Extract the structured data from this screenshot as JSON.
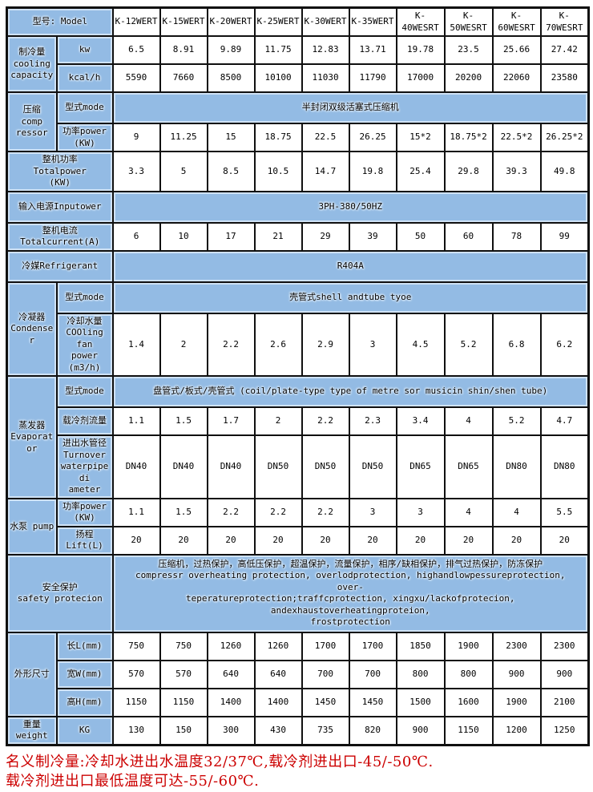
{
  "colors": {
    "cell_blue": "#93bbe4",
    "cell_blue_glow": "#cfe2f5",
    "grid_border": "#101010",
    "note_red": "#cc0000",
    "data_bg": "#ffffff"
  },
  "table": {
    "rows": [
      {
        "cells": [
          {
            "t": "型号: Model",
            "cs": 2,
            "k": "label",
            "n": "model-row-label"
          },
          {
            "t": "K-12WERT",
            "k": "model"
          },
          {
            "t": "K-15WERT",
            "k": "model"
          },
          {
            "t": "K-20WERT",
            "k": "model"
          },
          {
            "t": "K-25WERT",
            "k": "model"
          },
          {
            "t": "K-30WERT",
            "k": "model"
          },
          {
            "t": "K-35WERT",
            "k": "model"
          },
          {
            "t": "K-40WESRT",
            "k": "model"
          },
          {
            "t": "K-50WESRT",
            "k": "model"
          },
          {
            "t": "K-60WESRT",
            "k": "model"
          },
          {
            "t": "K-70WESRT",
            "k": "model"
          }
        ]
      },
      {
        "cells": [
          {
            "t": "制冷量\ncooling\ncapacity",
            "rs": 2,
            "k": "label",
            "n": "cooling-capacity-label"
          },
          {
            "t": "kw",
            "k": "label"
          },
          {
            "t": "6.5"
          },
          {
            "t": "8.91"
          },
          {
            "t": "9.89"
          },
          {
            "t": "11.75"
          },
          {
            "t": "12.83"
          },
          {
            "t": "13.71"
          },
          {
            "t": "19.78"
          },
          {
            "t": "23.5"
          },
          {
            "t": "25.66"
          },
          {
            "t": "27.42"
          }
        ]
      },
      {
        "cells": [
          {
            "t": "kcal/h",
            "k": "label"
          },
          {
            "t": "5590"
          },
          {
            "t": "7660"
          },
          {
            "t": "8500"
          },
          {
            "t": "10100"
          },
          {
            "t": "11030"
          },
          {
            "t": "11790"
          },
          {
            "t": "17000"
          },
          {
            "t": "20200"
          },
          {
            "t": "22060"
          },
          {
            "t": "23580"
          }
        ]
      },
      {
        "cells": [
          {
            "t": "压缩\ncomp\nressor",
            "rs": 2,
            "k": "label",
            "n": "compressor-label"
          },
          {
            "t": "型式mode",
            "k": "label"
          },
          {
            "t": "半封闭双级活塞式压缩机",
            "cs": 10,
            "k": "span",
            "n": "compressor-type-value"
          }
        ]
      },
      {
        "cells": [
          {
            "t": "功率power\n(KW)",
            "k": "label"
          },
          {
            "t": "9"
          },
          {
            "t": "11.25"
          },
          {
            "t": "15"
          },
          {
            "t": "18.75"
          },
          {
            "t": "22.5"
          },
          {
            "t": "26.25"
          },
          {
            "t": "15*2"
          },
          {
            "t": "18.75*2"
          },
          {
            "t": "22.5*2"
          },
          {
            "t": "26.25*2"
          }
        ]
      },
      {
        "cells": [
          {
            "t": "整机功率\nTotalpower\n(KW)",
            "cs": 2,
            "k": "label",
            "n": "total-power-label"
          },
          {
            "t": "3.3"
          },
          {
            "t": "5"
          },
          {
            "t": "8.5"
          },
          {
            "t": "10.5"
          },
          {
            "t": "14.7"
          },
          {
            "t": "19.8"
          },
          {
            "t": "25.4"
          },
          {
            "t": "29.8"
          },
          {
            "t": "39.3"
          },
          {
            "t": "49.8"
          }
        ]
      },
      {
        "cells": [
          {
            "t": "输入电源Inputower",
            "cs": 2,
            "k": "label",
            "n": "input-power-label"
          },
          {
            "t": "3PH-380/50HZ",
            "cs": 10,
            "k": "span",
            "n": "input-power-value"
          }
        ]
      },
      {
        "cells": [
          {
            "t": "整机电流Totalcurrent(A)",
            "cs": 2,
            "k": "label",
            "n": "total-current-label"
          },
          {
            "t": "6"
          },
          {
            "t": "10"
          },
          {
            "t": "17"
          },
          {
            "t": "21"
          },
          {
            "t": "29"
          },
          {
            "t": "39"
          },
          {
            "t": "50"
          },
          {
            "t": "60"
          },
          {
            "t": "78"
          },
          {
            "t": "99"
          }
        ]
      },
      {
        "cells": [
          {
            "t": "冷媒Refrigerant",
            "cs": 2,
            "k": "label",
            "n": "refrigerant-label"
          },
          {
            "t": "R404A",
            "cs": 10,
            "k": "span",
            "n": "refrigerant-value"
          }
        ]
      },
      {
        "cells": [
          {
            "t": "冷凝器\nCondenser",
            "rs": 2,
            "k": "label",
            "n": "condenser-label"
          },
          {
            "t": "型式mode",
            "k": "label"
          },
          {
            "t": "壳管式shell andtube tyoe",
            "cs": 10,
            "k": "span",
            "n": "condenser-type-value"
          }
        ]
      },
      {
        "cells": [
          {
            "t": "冷却水量\nCOOling fan\npower (m3/h)",
            "k": "label"
          },
          {
            "t": "1.4"
          },
          {
            "t": "2"
          },
          {
            "t": "2.2"
          },
          {
            "t": "2.6"
          },
          {
            "t": "2.9"
          },
          {
            "t": "3"
          },
          {
            "t": "4.5"
          },
          {
            "t": "5.2"
          },
          {
            "t": "6.8"
          },
          {
            "t": "6.2"
          }
        ]
      },
      {
        "cells": [
          {
            "t": "蒸发器\nEvaporator",
            "rs": 3,
            "k": "label",
            "n": "evaporator-label"
          },
          {
            "t": "型式mode",
            "k": "label"
          },
          {
            "t": "盘管式/板式/壳管式 (coil/plate-type type of metre sor musicin shin/shen tube)",
            "cs": 10,
            "k": "span",
            "n": "evaporator-type-value"
          }
        ]
      },
      {
        "cells": [
          {
            "t": "载冷剂流量",
            "k": "label"
          },
          {
            "t": "1.1"
          },
          {
            "t": "1.5"
          },
          {
            "t": "1.7"
          },
          {
            "t": "2"
          },
          {
            "t": "2.2"
          },
          {
            "t": "2.3"
          },
          {
            "t": "3.4"
          },
          {
            "t": "4"
          },
          {
            "t": "5.2"
          },
          {
            "t": "4.7"
          }
        ]
      },
      {
        "cells": [
          {
            "t": "进出水管径\nTurnover\nwaterpipedi\nameter",
            "k": "label"
          },
          {
            "t": "DN40"
          },
          {
            "t": "DN40"
          },
          {
            "t": "DN40"
          },
          {
            "t": "DN50"
          },
          {
            "t": "DN50"
          },
          {
            "t": "DN50"
          },
          {
            "t": "DN65"
          },
          {
            "t": "DN65"
          },
          {
            "t": "DN80"
          },
          {
            "t": "DN80"
          }
        ]
      },
      {
        "cells": [
          {
            "t": "水泵  pump",
            "rs": 2,
            "k": "label",
            "n": "pump-label"
          },
          {
            "t": "功率power (KW)",
            "k": "label"
          },
          {
            "t": "1.1"
          },
          {
            "t": "1.5"
          },
          {
            "t": "2.2"
          },
          {
            "t": "2.2"
          },
          {
            "t": "2.2"
          },
          {
            "t": "3"
          },
          {
            "t": "3"
          },
          {
            "t": "4"
          },
          {
            "t": "4"
          },
          {
            "t": "5.5"
          }
        ]
      },
      {
        "cells": [
          {
            "t": "扬程Lift(L)",
            "k": "label"
          },
          {
            "t": "20"
          },
          {
            "t": "20"
          },
          {
            "t": "20"
          },
          {
            "t": "20"
          },
          {
            "t": "20"
          },
          {
            "t": "20"
          },
          {
            "t": "20"
          },
          {
            "t": "20"
          },
          {
            "t": "20"
          },
          {
            "t": "20"
          }
        ]
      },
      {
        "cells": [
          {
            "t": "安全保护\nsafety protecion",
            "cs": 2,
            "k": "label",
            "n": "safety-protection-label"
          },
          {
            "t": "压缩机，过热保护，高低压保护，超温保护，流量保护，相序/缺相保护，排气过热保护，防冻保护\ncompressr overheating protection, overlodprotection, highandlowpessureprotection, over-\nteperatureprotection;traffcprotection, xingxu/lackofprotecion, andexhaustoverheatingproteion,\nfrostprotection",
            "cs": 10,
            "k": "span",
            "n": "safety-protection-value"
          }
        ]
      },
      {
        "cells": [
          {
            "t": "外形尺寸",
            "rs": 3,
            "k": "label",
            "n": "dimensions-label"
          },
          {
            "t": "长L(mm)",
            "k": "label"
          },
          {
            "t": "750"
          },
          {
            "t": "750"
          },
          {
            "t": "1260"
          },
          {
            "t": "1260"
          },
          {
            "t": "1700"
          },
          {
            "t": "1700"
          },
          {
            "t": "1850"
          },
          {
            "t": "1900"
          },
          {
            "t": "2300"
          },
          {
            "t": "2300"
          }
        ]
      },
      {
        "cells": [
          {
            "t": "宽W(mm)",
            "k": "label"
          },
          {
            "t": "570"
          },
          {
            "t": "570"
          },
          {
            "t": "640"
          },
          {
            "t": "640"
          },
          {
            "t": "700"
          },
          {
            "t": "700"
          },
          {
            "t": "800"
          },
          {
            "t": "800"
          },
          {
            "t": "900"
          },
          {
            "t": "900"
          }
        ]
      },
      {
        "cells": [
          {
            "t": "高H(mm)",
            "k": "label"
          },
          {
            "t": "1150"
          },
          {
            "t": "1150"
          },
          {
            "t": "1400"
          },
          {
            "t": "1400"
          },
          {
            "t": "1450"
          },
          {
            "t": "1450"
          },
          {
            "t": "1500"
          },
          {
            "t": "1600"
          },
          {
            "t": "1900"
          },
          {
            "t": "2100"
          }
        ]
      },
      {
        "cells": [
          {
            "t": "重量weight",
            "k": "label",
            "n": "weight-label"
          },
          {
            "t": "KG",
            "k": "label"
          },
          {
            "t": "130"
          },
          {
            "t": "150"
          },
          {
            "t": "300"
          },
          {
            "t": "430"
          },
          {
            "t": "735"
          },
          {
            "t": "820"
          },
          {
            "t": "900"
          },
          {
            "t": "1150"
          },
          {
            "t": "1200"
          },
          {
            "t": "1250"
          }
        ]
      }
    ]
  },
  "notes": {
    "line1": "名义制冷量:冷却水进出水温度32/37℃,载冷剂进出口-45/-50℃.",
    "line2": "载冷剂进出口最低温度可达-55/-60℃."
  }
}
